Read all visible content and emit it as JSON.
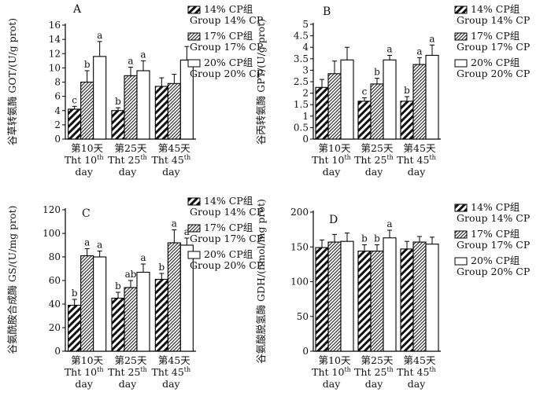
{
  "legend": [
    {
      "line1": "14% CP组",
      "line2": "Group 14% CP",
      "fill": "hatch-bold"
    },
    {
      "line1": "17% CP组",
      "line2": "Group 17% CP",
      "fill": "hatch-fine"
    },
    {
      "line1": "20% CP组",
      "line2": "Group 20% CP",
      "fill": "white"
    }
  ],
  "x_groups": [
    {
      "line1": "第10天",
      "line2": "Tht 10",
      "sup": "th",
      "line3": "day"
    },
    {
      "line1": "第25天",
      "line2": "Tht 25",
      "sup": "th",
      "line3": "day"
    },
    {
      "line1": "第45天",
      "line2": "Tht 45",
      "sup": "th",
      "line3": "day"
    }
  ],
  "chart_data": [
    {
      "panel": "A",
      "type": "bar",
      "ylabel": "谷草转氨酶 GOT/(U/g prot)",
      "ylim": [
        0,
        16
      ],
      "yticks": [
        0,
        2,
        4,
        6,
        8,
        10,
        12,
        14,
        16
      ],
      "categories": [
        "第10天 Tht 10th day",
        "第25天 Tht 25th day",
        "第45天 Tht 45th day"
      ],
      "series": [
        {
          "name": "14% CP组 Group 14% CP",
          "values": [
            4.2,
            4.0,
            7.4
          ],
          "errors": [
            0.4,
            0.4,
            1.2
          ],
          "letters": [
            "c",
            "b",
            ""
          ]
        },
        {
          "name": "17% CP组 Group 17% CP",
          "values": [
            8.0,
            8.9,
            7.8
          ],
          "errors": [
            1.6,
            1.2,
            1.3
          ],
          "letters": [
            "b",
            "a",
            ""
          ]
        },
        {
          "name": "20% CP组 Group 20% CP",
          "values": [
            11.6,
            9.6,
            11.1
          ],
          "errors": [
            2.1,
            1.4,
            1.9
          ],
          "letters": [
            "a",
            "a",
            ""
          ]
        }
      ]
    },
    {
      "panel": "B",
      "type": "bar",
      "ylabel": "谷丙转氨酶 GPT/(U/g prot)",
      "ylim": [
        0,
        5
      ],
      "yticks": [
        0,
        0.5,
        1,
        1.5,
        2,
        2.5,
        3,
        3.5,
        4,
        4.5,
        5
      ],
      "categories": [
        "第10天 Tht 10th day",
        "第25天 Tht 25th day",
        "第45天 Tht 45th day"
      ],
      "series": [
        {
          "name": "14% CP组 Group 14% CP",
          "values": [
            2.25,
            1.65,
            1.65
          ],
          "errors": [
            0.35,
            0.15,
            0.2
          ],
          "letters": [
            "",
            "c",
            "b"
          ]
        },
        {
          "name": "17% CP组 Group 17% CP",
          "values": [
            2.85,
            2.4,
            3.25
          ],
          "errors": [
            0.55,
            0.25,
            0.3
          ],
          "letters": [
            "",
            "b",
            "a"
          ]
        },
        {
          "name": "20% CP组 Group 20% CP",
          "values": [
            3.45,
            3.45,
            3.65
          ],
          "errors": [
            0.55,
            0.2,
            0.45
          ],
          "letters": [
            "",
            "a",
            "a"
          ]
        }
      ]
    },
    {
      "panel": "C",
      "type": "bar",
      "ylabel": "谷氨酰胺合成酶 GS/(U/mg prot)",
      "ylim": [
        0,
        120
      ],
      "yticks": [
        0,
        20,
        40,
        60,
        80,
        100,
        120
      ],
      "categories": [
        "第10天 Tht 10th day",
        "第25天 Tht 25th day",
        "第45天 Tht 45th day"
      ],
      "series": [
        {
          "name": "14% CP组 Group 14% CP",
          "values": [
            39,
            45,
            61
          ],
          "errors": [
            5,
            5,
            5
          ],
          "letters": [
            "b",
            "b",
            "b"
          ]
        },
        {
          "name": "17% CP组 Group 17% CP",
          "values": [
            81,
            54,
            92
          ],
          "errors": [
            6,
            6,
            11
          ],
          "letters": [
            "a",
            "ab",
            "a"
          ]
        },
        {
          "name": "20% CP组 Group 20% CP",
          "values": [
            80,
            67,
            90
          ],
          "errors": [
            5,
            7,
            6
          ],
          "letters": [
            "a",
            "a",
            "a"
          ]
        }
      ]
    },
    {
      "panel": "D",
      "type": "bar",
      "ylabel": "谷氨酸脱氢酶 GDH/(nmol/mg prot)",
      "ylim": [
        0,
        200
      ],
      "yticks": [
        0,
        50,
        100,
        150,
        200
      ],
      "categories": [
        "第10天 Tht 10th day",
        "第25天 Tht 25th day",
        "第45天 Tht 45th day"
      ],
      "series": [
        {
          "name": "14% CP组 Group 14% CP",
          "values": [
            149,
            144,
            147
          ],
          "errors": [
            11,
            9,
            11
          ],
          "letters": [
            "",
            "b",
            ""
          ]
        },
        {
          "name": "17% CP组 Group 17% CP",
          "values": [
            157,
            144,
            157
          ],
          "errors": [
            11,
            9,
            8
          ],
          "letters": [
            "",
            "b",
            ""
          ]
        },
        {
          "name": "20% CP组 Group 20% CP",
          "values": [
            158,
            163,
            154
          ],
          "errors": [
            12,
            11,
            10
          ],
          "letters": [
            "",
            "a",
            ""
          ]
        }
      ]
    }
  ]
}
